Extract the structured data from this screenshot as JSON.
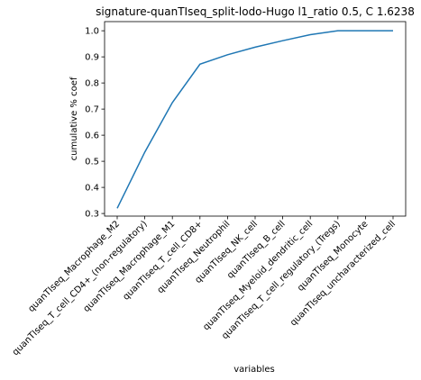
{
  "chart_data": {
    "type": "line",
    "title": "signature-quanTIseq_split-lodo-Hugo l1_ratio 0.5, C 1.6238",
    "xlabel": "variables",
    "ylabel": "cumulative % coef",
    "categories": [
      "quanTIseq_Macrophage_M2",
      "quanTIseq_T_cell_CD4+_(non-regulatory)",
      "quanTIseq_Macrophage_M1",
      "quanTIseq_T_cell_CD8+",
      "quanTIseq_Neutrophil",
      "quanTIseq_NK_cell",
      "quanTIseq_B_cell",
      "quanTIseq_Myeloid_dendritic_cell",
      "quanTIseq_T_cell_regulatory_(Tregs)",
      "quanTIseq_Monocyte",
      "quanTIseq_uncharacterized_cell"
    ],
    "values": [
      0.32,
      0.535,
      0.725,
      0.872,
      0.908,
      0.937,
      0.962,
      0.985,
      1.0,
      1.0,
      1.0
    ],
    "ylim": [
      0.29,
      1.035
    ],
    "yticks": [
      0.3,
      0.4,
      0.5,
      0.6,
      0.7,
      0.8,
      0.9,
      1.0
    ],
    "ytick_labels": [
      "0.3",
      "0.4",
      "0.5",
      "0.6",
      "0.7",
      "0.8",
      "0.9",
      "1.0"
    ],
    "line_color": "#1f77b4",
    "grid": false,
    "legend": false
  }
}
